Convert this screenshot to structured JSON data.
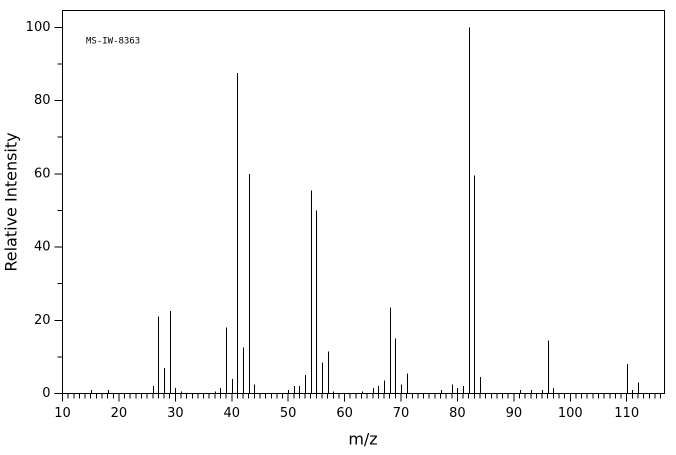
{
  "chart_data": {
    "type": "spectrum",
    "annotation": "MS-IW-8363",
    "x_label": "m/z",
    "y_label": "Relative Intensity",
    "color": "#000000",
    "x": [
      15,
      18,
      26,
      27,
      28,
      29,
      30,
      31,
      37,
      38,
      39,
      40,
      41,
      42,
      43,
      44,
      50,
      51,
      52,
      53,
      54,
      55,
      56,
      57,
      58,
      63,
      65,
      66,
      67,
      68,
      69,
      70,
      71,
      77,
      79,
      80,
      81,
      82,
      83,
      84,
      91,
      93,
      95,
      96,
      97,
      110,
      111,
      112
    ],
    "values": [
      1,
      1,
      2,
      21,
      7,
      22.5,
      1.5,
      0.5,
      0.5,
      1.5,
      18,
      4,
      87.5,
      12.5,
      60,
      2.5,
      1,
      2,
      2,
      5,
      55.5,
      50,
      8.5,
      11.5,
      0.5,
      0.5,
      1.5,
      2,
      3.5,
      23.5,
      15,
      2.5,
      5.5,
      1,
      2.5,
      1.5,
      2,
      100,
      59.5,
      4.5,
      1,
      1,
      1,
      14.5,
      1.5,
      8,
      1,
      3
    ],
    "xlim": [
      10,
      116.7
    ],
    "ylim": [
      0,
      104.6
    ],
    "xticks": [
      10,
      20,
      30,
      40,
      50,
      60,
      70,
      80,
      90,
      100,
      110
    ],
    "xminorticks": [
      11,
      12,
      13,
      14,
      15,
      16,
      17,
      18,
      19,
      21,
      22,
      23,
      24,
      25,
      26,
      27,
      28,
      29,
      31,
      32,
      33,
      34,
      35,
      36,
      37,
      38,
      39,
      41,
      42,
      43,
      44,
      45,
      46,
      47,
      48,
      49,
      51,
      52,
      53,
      54,
      55,
      56,
      57,
      58,
      59,
      61,
      62,
      63,
      64,
      65,
      66,
      67,
      68,
      69,
      71,
      72,
      73,
      74,
      75,
      76,
      77,
      78,
      79,
      81,
      82,
      83,
      84,
      85,
      86,
      87,
      88,
      89,
      91,
      92,
      93,
      94,
      95,
      96,
      97,
      98,
      99,
      101,
      102,
      103,
      104,
      105,
      106,
      107,
      108,
      109,
      111,
      112,
      113,
      114,
      115,
      116
    ],
    "yticks": [
      0,
      20,
      40,
      60,
      80,
      100
    ],
    "yminorticks": [
      10,
      30,
      50,
      70,
      90
    ]
  }
}
